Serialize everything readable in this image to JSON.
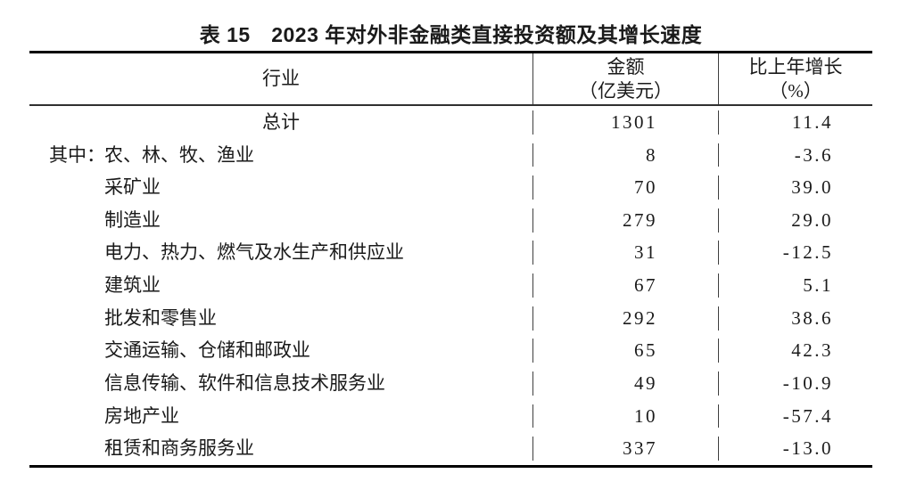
{
  "title": "表 15　2023 年对外非金融类直接投资额及其增长速度",
  "table": {
    "headers": {
      "industry": "行业",
      "amount_line1": "金额",
      "amount_line2": "（亿美元）",
      "growth_line1": "比上年增长",
      "growth_line2": "（%）"
    },
    "rows": [
      {
        "industry": "总计",
        "amount": "1301",
        "growth": "11.4"
      },
      {
        "prefix": "其中：",
        "industry": "农、林、牧、渔业",
        "amount": "8",
        "growth": "-3.6"
      },
      {
        "industry": "采矿业",
        "amount": "70",
        "growth": "39.0"
      },
      {
        "industry": "制造业",
        "amount": "279",
        "growth": "29.0"
      },
      {
        "industry": "电力、热力、燃气及水生产和供应业",
        "amount": "31",
        "growth": "-12.5"
      },
      {
        "industry": "建筑业",
        "amount": "67",
        "growth": "5.1"
      },
      {
        "industry": "批发和零售业",
        "amount": "292",
        "growth": "38.6"
      },
      {
        "industry": "交通运输、仓储和邮政业",
        "amount": "65",
        "growth": "42.3"
      },
      {
        "industry": "信息传输、软件和信息技术服务业",
        "amount": "49",
        "growth": "-10.9"
      },
      {
        "industry": "房地产业",
        "amount": "10",
        "growth": "-57.4"
      },
      {
        "industry": "租赁和商务服务业",
        "amount": "337",
        "growth": "-13.0"
      }
    ]
  }
}
